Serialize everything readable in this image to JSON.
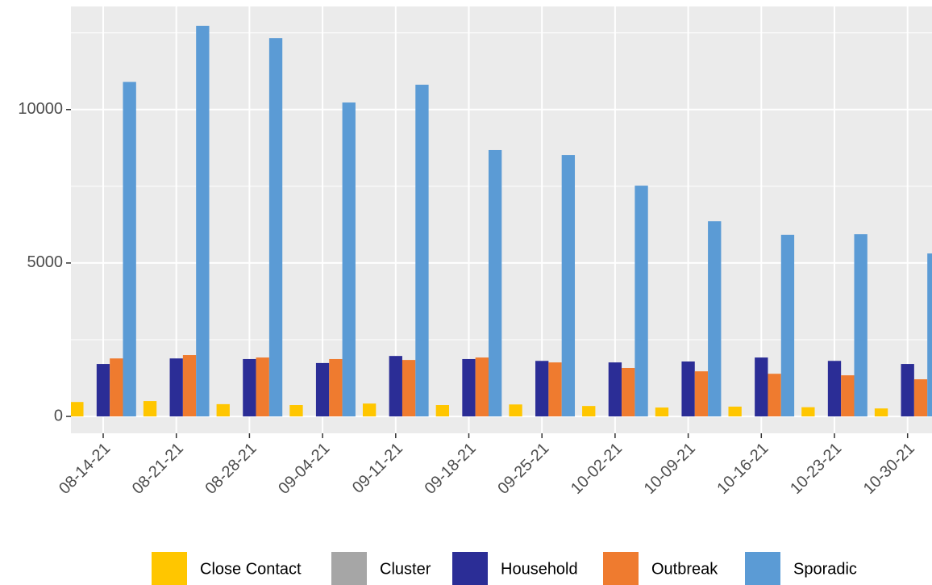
{
  "chart_data": {
    "type": "bar",
    "categories": [
      "08-14-21",
      "08-21-21",
      "08-28-21",
      "09-04-21",
      "09-11-21",
      "09-18-21",
      "09-25-21",
      "10-02-21",
      "10-09-21",
      "10-16-21",
      "10-23-21",
      "10-30-21"
    ],
    "series": [
      {
        "name": "Close Contact",
        "color": "#ffc600",
        "values": [
          470,
          500,
          400,
          370,
          420,
          370,
          390,
          340,
          290,
          320,
          300,
          260
        ]
      },
      {
        "name": "Cluster",
        "color": "#a6a6a6",
        "values": [
          0,
          0,
          0,
          0,
          0,
          0,
          0,
          0,
          0,
          0,
          0,
          0
        ]
      },
      {
        "name": "Household",
        "color": "#2b2d96",
        "values": [
          1710,
          1890,
          1870,
          1740,
          1970,
          1870,
          1810,
          1760,
          1790,
          1920,
          1810,
          1710
        ]
      },
      {
        "name": "Outbreak",
        "color": "#ef7b2f",
        "values": [
          1890,
          2000,
          1920,
          1870,
          1840,
          1920,
          1760,
          1580,
          1470,
          1390,
          1340,
          1210
        ]
      },
      {
        "name": "Sporadic",
        "color": "#5b9bd5",
        "values": [
          10900,
          12730,
          12330,
          10230,
          10810,
          8680,
          8520,
          7520,
          6360,
          5920,
          5940,
          5310
        ]
      }
    ],
    "ylim": [
      -550,
      13360
    ],
    "yticks": [
      0,
      5000,
      10000
    ],
    "y_minor_ticks": [
      2500,
      7500,
      12500
    ],
    "grid": true,
    "legend": "bottom"
  }
}
